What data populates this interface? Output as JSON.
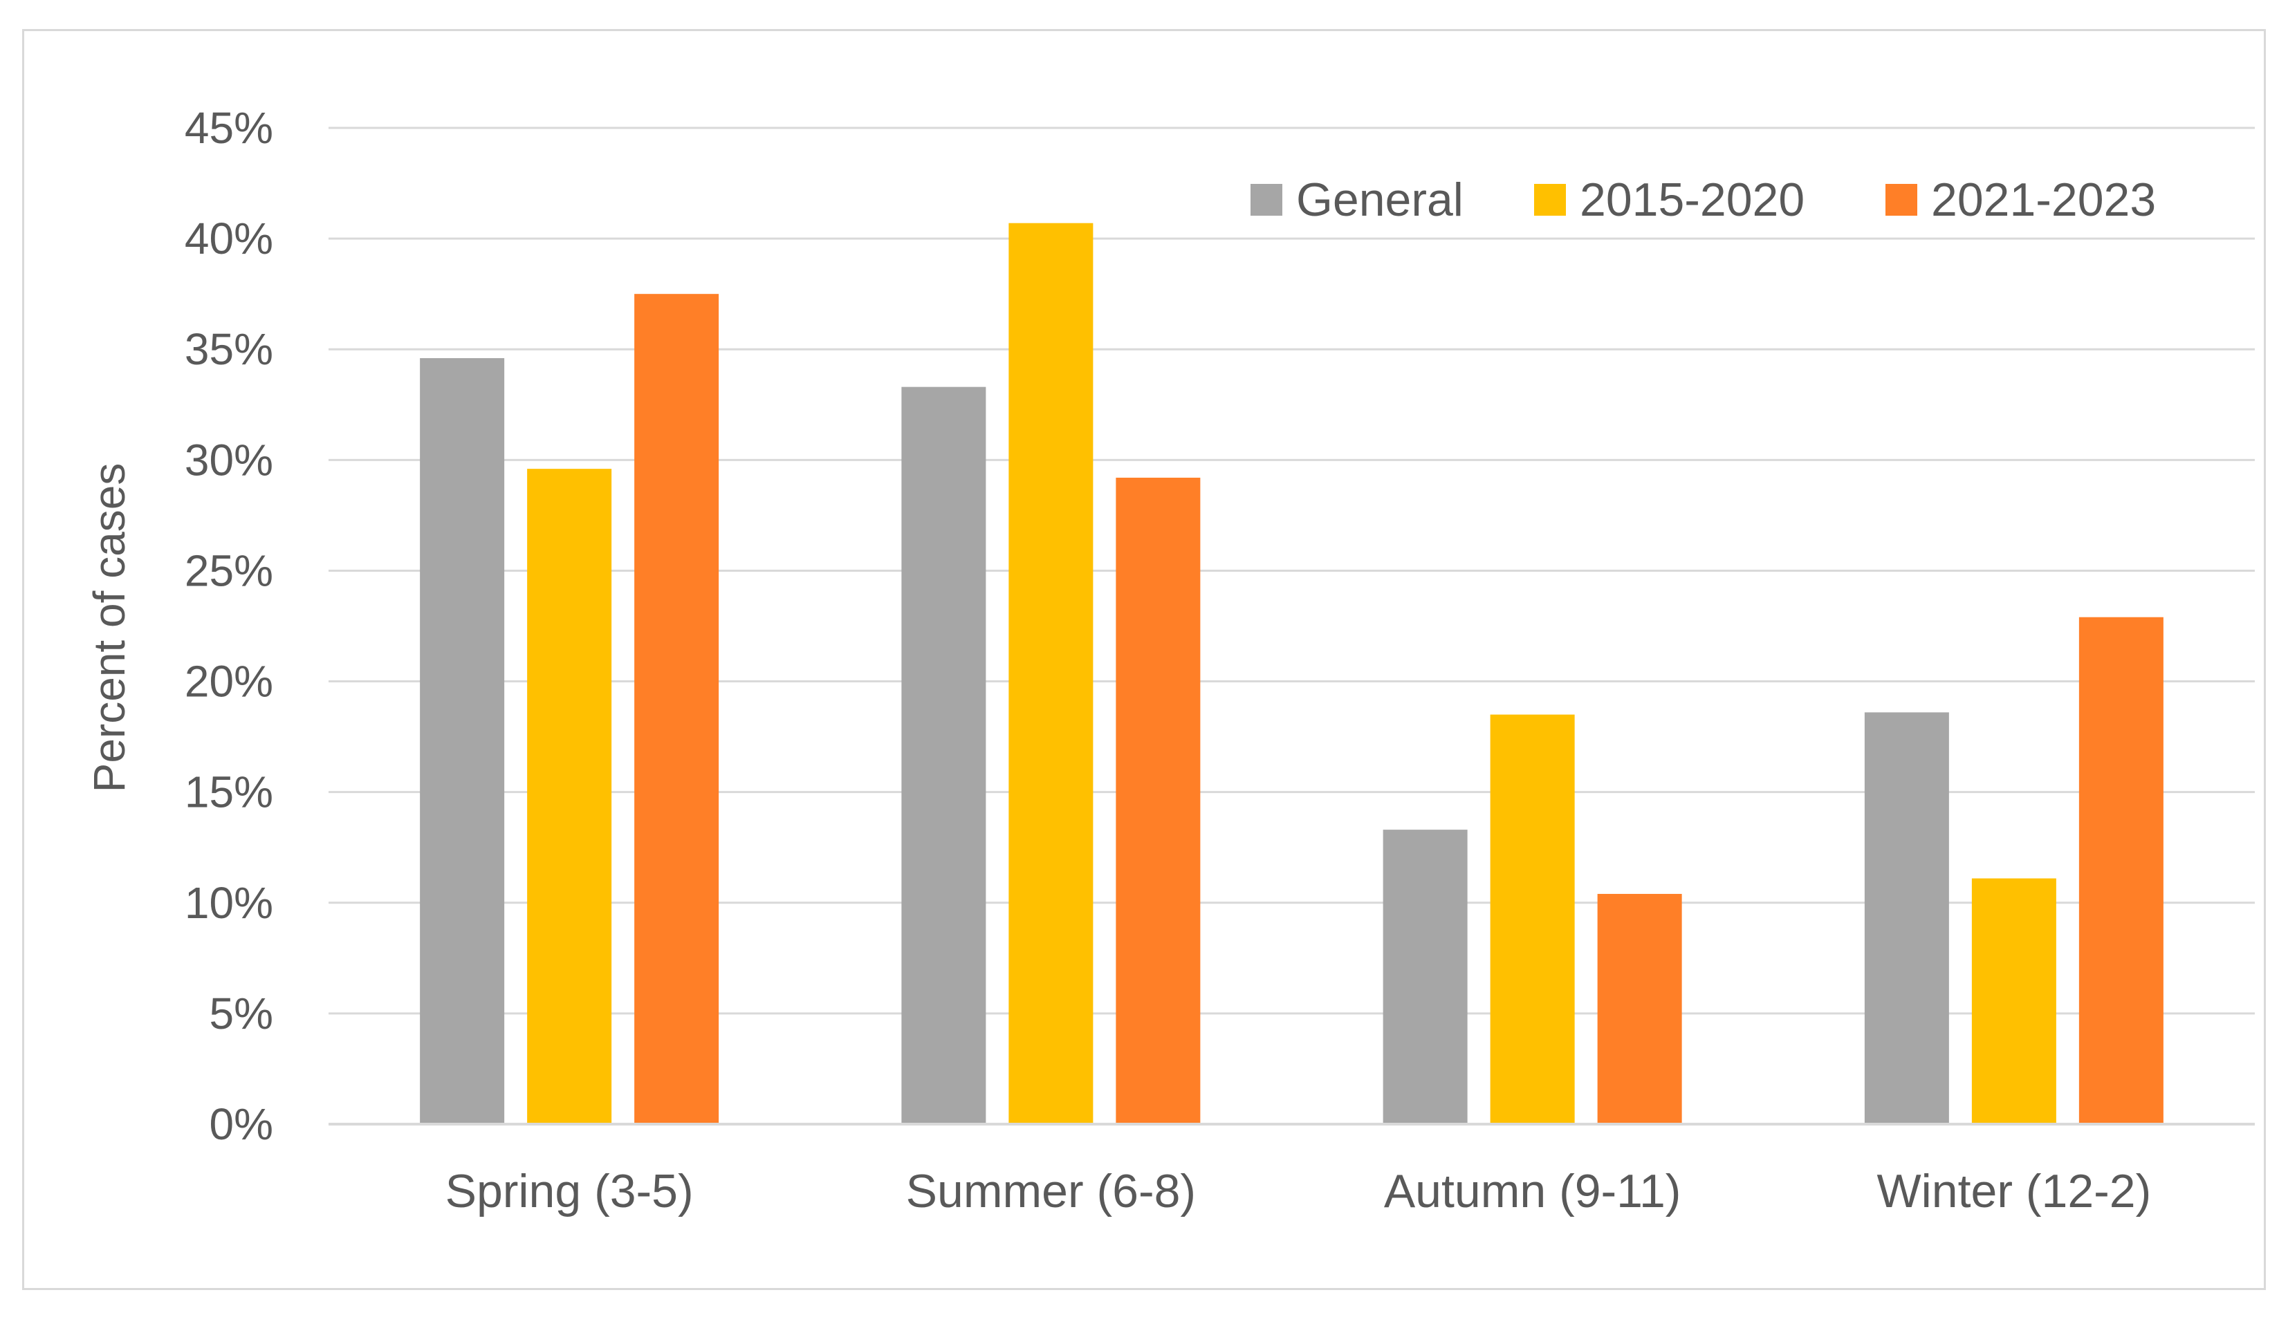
{
  "chart_data": {
    "type": "bar",
    "title": "",
    "xlabel": "",
    "ylabel": "Percent of cases",
    "ylim": [
      0,
      45
    ],
    "ytick_step": 5,
    "ytick_labels": [
      "0%",
      "5%",
      "10%",
      "15%",
      "20%",
      "25%",
      "30%",
      "35%",
      "40%",
      "45%"
    ],
    "grid": true,
    "legend_position": "top-right",
    "categories": [
      "Spring (3-5)",
      "Summer (6-8)",
      "Autumn (9-11)",
      "Winter (12-2)"
    ],
    "series": [
      {
        "name": "General",
        "color": "#a6a6a6",
        "values": [
          34.6,
          33.3,
          13.3,
          18.6
        ]
      },
      {
        "name": "2015-2020",
        "color": "#ffc000",
        "values": [
          29.6,
          40.7,
          18.5,
          11.1
        ]
      },
      {
        "name": "2021-2023",
        "color": "#ff7f27",
        "values": [
          37.5,
          29.2,
          10.4,
          22.9
        ]
      }
    ]
  }
}
